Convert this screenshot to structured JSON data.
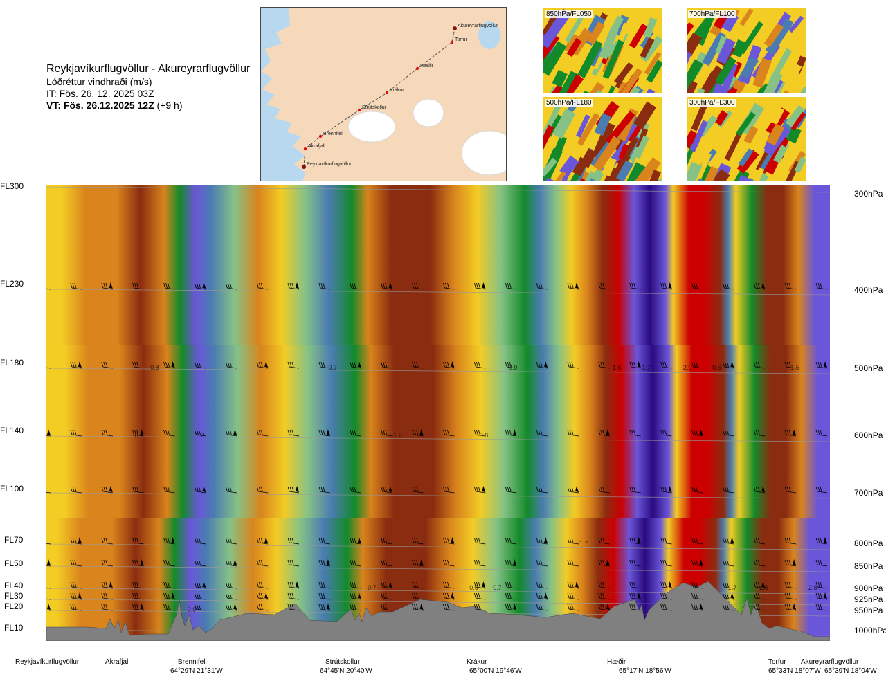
{
  "title": {
    "route": "Reykjavíkurflugvöllur - Akureyrarflugvöllur",
    "parameter": "Lóðréttur vindhraði (m/s)",
    "issue": "IT: Fös. 26. 12. 2025 03Z",
    "valid_bold": "VT: Fös. 26.12.2025 12Z",
    "valid_offset": "(+9 h)"
  },
  "map": {
    "waypoints": [
      "Akureyrarflugvöllur",
      "Torfur",
      "Hæðir",
      "Krákur",
      "Strútskollur",
      "Brennifell",
      "Akrafjall",
      "Reykjavíkurflugvöllur"
    ],
    "colors": {
      "sea": "#b8d8f0",
      "land": "#f6d9bb",
      "ice": "#ffffff",
      "route": "#555555",
      "point": "#e21212"
    }
  },
  "thumbnails": [
    "850hPa/FL050",
    "700hPa/FL100",
    "500hPa/FL180",
    "300hPa/FL300"
  ],
  "left_axis": [
    "FL300",
    "FL230",
    "FL180",
    "FL140",
    "FL100",
    "FL70",
    "FL50",
    "FL40",
    "FL30",
    "FL20",
    "FL10"
  ],
  "right_axis": [
    "300hPa",
    "400hPa",
    "500hPa",
    "600hPa",
    "700hPa",
    "800hPa",
    "850hPa",
    "900hPa",
    "925hPa",
    "950hPa",
    "1000hPa"
  ],
  "bottom_locations": [
    {
      "name": "Reykjavíkurflugvöllur",
      "coord": ""
    },
    {
      "name": "Akrafjall",
      "coord": ""
    },
    {
      "name": "Brennifell",
      "coord": "64°29'N 21°31'W"
    },
    {
      "name": "Strútskollur",
      "coord": "64°45'N 20°40'W"
    },
    {
      "name": "Krákur",
      "coord": "65°00'N 19°46'W"
    },
    {
      "name": "Hæðir",
      "coord": "65°17'N 18°56'W"
    },
    {
      "name": "Torfur",
      "coord": "65°33'N 18°07'W"
    },
    {
      "name": "Akureyrarflugvöllur",
      "coord": "65°39'N 18°04'W"
    }
  ],
  "chart_data": {
    "type": "heatmap",
    "title": "Reykjavíkurflugvöllur - Akureyrarflugvöllur",
    "subtitle": "Lóðréttur vindhraði (m/s)",
    "y_axis_left": [
      "FL300",
      "FL230",
      "FL180",
      "FL140",
      "FL100",
      "FL70",
      "FL50",
      "FL40",
      "FL30",
      "FL20",
      "FL10"
    ],
    "y_axis_right_hpa": [
      300,
      400,
      500,
      600,
      700,
      800,
      850,
      900,
      925,
      950,
      1000
    ],
    "x_locations": [
      "Reykjavíkurflugvöllur",
      "Akrafjall",
      "Brennifell",
      "Strútskollur",
      "Krákur",
      "Hæðir",
      "Torfur",
      "Akureyrarflugvöllur"
    ],
    "palette": {
      "strong_down": "#cc0000",
      "mod_down": "#8a2c10",
      "down": "#d9841c",
      "weak_down": "#f3cc24",
      "near_zero_down": "#f6ecb0",
      "near_zero_up": "#d6ecd0",
      "weak_up": "#86c286",
      "up": "#138a2a",
      "strong_up": "#4a7cb2",
      "stronger_up": "#6a56d8",
      "max_up": "#2a0a80",
      "terrain": "#808080"
    },
    "columns": [
      {
        "x": 0.0,
        "v": -0.2
      },
      {
        "x": 0.02,
        "v": -0.3
      },
      {
        "x": 0.05,
        "v": -0.5
      },
      {
        "x": 0.09,
        "v": -0.6
      },
      {
        "x": 0.12,
        "v": -0.9
      },
      {
        "x": 0.15,
        "v": -0.5
      },
      {
        "x": 0.17,
        "v": 0.4
      },
      {
        "x": 0.19,
        "v": 1.2
      },
      {
        "x": 0.21,
        "v": 0.7
      },
      {
        "x": 0.24,
        "v": 0.2
      },
      {
        "x": 0.27,
        "v": -0.4
      },
      {
        "x": 0.3,
        "v": -0.2
      },
      {
        "x": 0.33,
        "v": 0.2
      },
      {
        "x": 0.36,
        "v": 0.7
      },
      {
        "x": 0.39,
        "v": 0.5
      },
      {
        "x": 0.41,
        "v": -0.6
      },
      {
        "x": 0.44,
        "v": -0.9
      },
      {
        "x": 0.46,
        "v": -1.2
      },
      {
        "x": 0.49,
        "v": -0.8
      },
      {
        "x": 0.52,
        "v": -0.4
      },
      {
        "x": 0.55,
        "v": -0.2
      },
      {
        "x": 0.58,
        "v": 0.2
      },
      {
        "x": 0.61,
        "v": 0.5
      },
      {
        "x": 0.63,
        "v": 0.9
      },
      {
        "x": 0.65,
        "v": 0.3
      },
      {
        "x": 0.67,
        "v": -0.2
      },
      {
        "x": 0.69,
        "v": -0.4
      },
      {
        "x": 0.71,
        "v": -1.0
      },
      {
        "x": 0.73,
        "v": -1.6
      },
      {
        "x": 0.75,
        "v": 1.3
      },
      {
        "x": 0.77,
        "v": 1.7
      },
      {
        "x": 0.79,
        "v": 1.4
      },
      {
        "x": 0.8,
        "v": -0.3
      },
      {
        "x": 0.82,
        "v": -1.6
      },
      {
        "x": 0.84,
        "v": -2.0
      },
      {
        "x": 0.86,
        "v": -1.3
      },
      {
        "x": 0.87,
        "v": 0.9
      },
      {
        "x": 0.88,
        "v": -0.3
      },
      {
        "x": 0.9,
        "v": 0.6
      },
      {
        "x": 0.92,
        "v": -0.8
      },
      {
        "x": 0.94,
        "v": -1.4
      },
      {
        "x": 0.96,
        "v": -0.5
      },
      {
        "x": 0.98,
        "v": 1.3
      },
      {
        "x": 1.0,
        "v": 1.5
      }
    ],
    "value_labels": [
      {
        "x": 0.13,
        "level": "FL180",
        "text": "-0.8"
      },
      {
        "x": 0.11,
        "level": "FL140",
        "text": "-0.7"
      },
      {
        "x": 0.19,
        "level": "FL140",
        "text": "1.2"
      },
      {
        "x": 0.36,
        "level": "FL180",
        "text": "0.7"
      },
      {
        "x": 0.44,
        "level": "FL140",
        "text": "-1.2"
      },
      {
        "x": 0.55,
        "level": "FL140",
        "text": "-0.8"
      },
      {
        "x": 0.59,
        "level": "FL180",
        "text": "0.9"
      },
      {
        "x": 0.72,
        "level": "FL180",
        "text": "-1.6"
      },
      {
        "x": 0.76,
        "level": "FL180",
        "text": "1.7"
      },
      {
        "x": 0.81,
        "level": "FL180",
        "text": "-2.0"
      },
      {
        "x": 0.85,
        "level": "FL180",
        "text": "0.6"
      },
      {
        "x": 0.95,
        "level": "FL180",
        "text": "1.5"
      },
      {
        "x": 0.68,
        "level": "FL70",
        "text": "1.7"
      },
      {
        "x": 0.41,
        "level": "FL40",
        "text": "0.7"
      },
      {
        "x": 0.54,
        "level": "FL40",
        "text": "0.6"
      },
      {
        "x": 0.57,
        "level": "FL40",
        "text": "0.7"
      },
      {
        "x": 0.87,
        "level": "FL40",
        "text": "1.7"
      },
      {
        "x": 0.91,
        "level": "FL40",
        "text": "2.5"
      },
      {
        "x": 0.97,
        "level": "FL40",
        "text": "-2.8"
      },
      {
        "x": 0.18,
        "level": "FL20",
        "text": "0.9"
      }
    ]
  }
}
